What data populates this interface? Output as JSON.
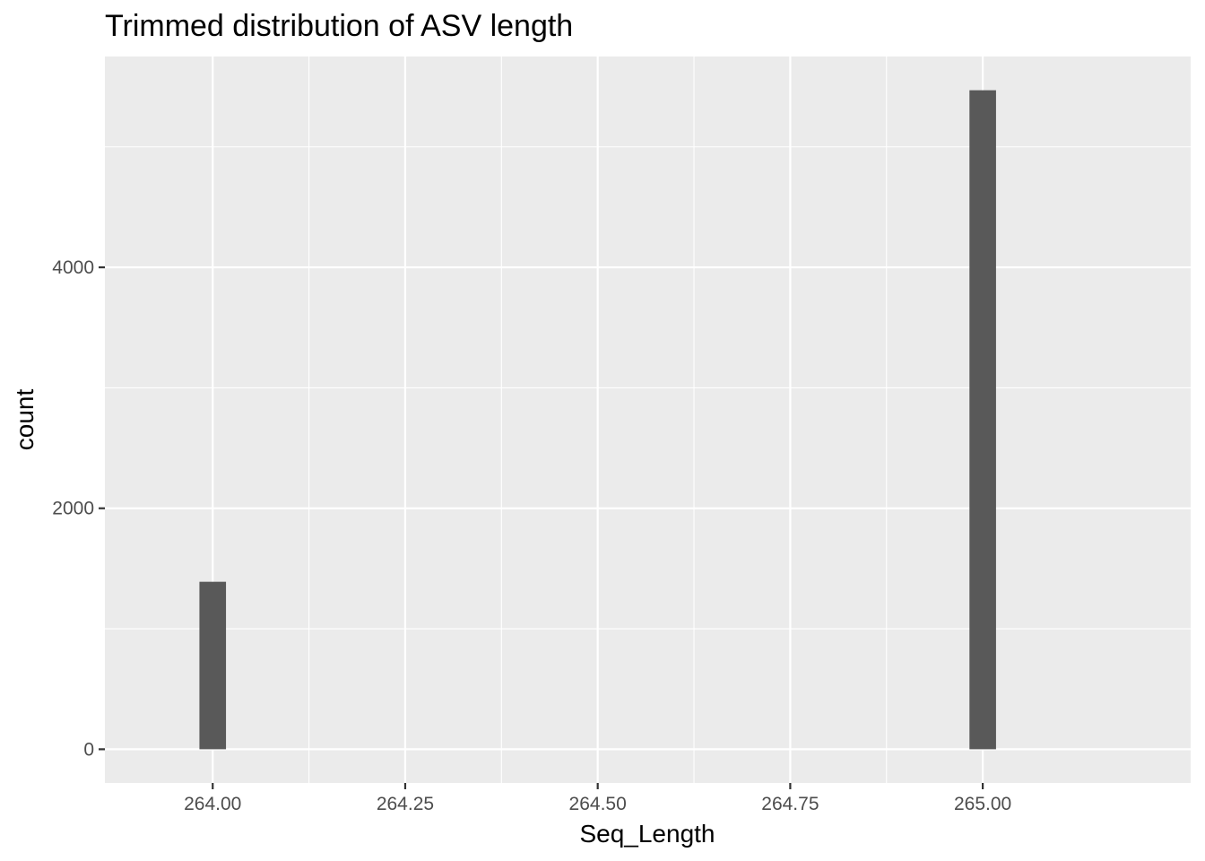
{
  "chart_data": {
    "type": "bar",
    "title": "Trimmed distribution of ASV length",
    "xlabel": "Seq_Length",
    "ylabel": "count",
    "x": [
      264.0,
      265.0
    ],
    "values": [
      1390,
      5470
    ],
    "bar_width": 0.0345,
    "xlim": [
      263.86,
      265.27
    ],
    "ylim": [
      -280,
      5750
    ],
    "x_ticks": [
      264.0,
      264.25,
      264.5,
      264.75,
      265.0
    ],
    "x_tick_labels": [
      "264.00",
      "264.25",
      "264.50",
      "264.75",
      "265.00"
    ],
    "y_ticks": [
      0,
      2000,
      4000
    ],
    "y_tick_labels": [
      "0",
      "2000",
      "4000"
    ],
    "grid": true,
    "legend": "none",
    "colors": {
      "panel": "#ebebeb",
      "grid": "#ffffff",
      "bar": "#595959",
      "tick_text": "#4d4d4d",
      "text": "#000000"
    }
  }
}
